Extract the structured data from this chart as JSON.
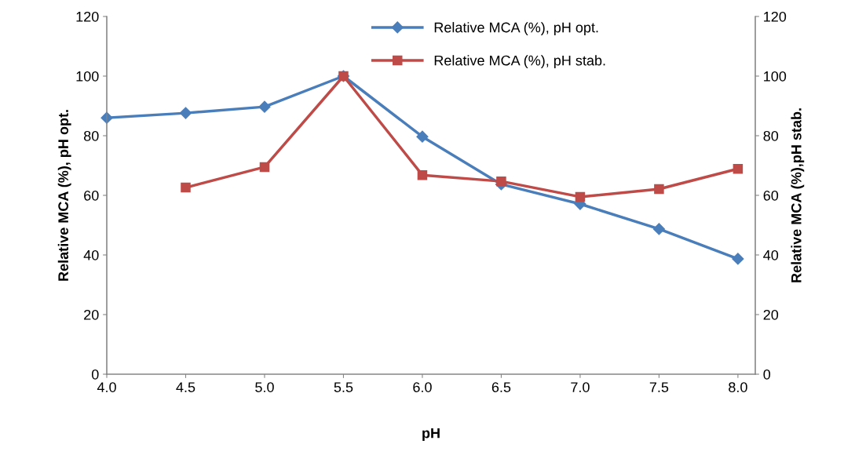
{
  "chart_data": {
    "type": "line",
    "xlabel": "pH",
    "ylabel": "Relative MCA (%), pH opt.",
    "y2label": "Relative MCA (%),pH stab.",
    "x": [
      4.0,
      4.5,
      5.0,
      5.5,
      6.0,
      6.5,
      7.0,
      7.5,
      8.0
    ],
    "series": [
      {
        "name": "Relative MCA (%), pH opt.",
        "color": "#4a7ebb",
        "marker": "diamond",
        "values": [
          86,
          87.6,
          89.7,
          100,
          79.7,
          63.7,
          57.1,
          48.7,
          38.7
        ]
      },
      {
        "name": "Relative MCA (%), pH stab.",
        "color": "#be4b48",
        "marker": "square",
        "axis": "y2",
        "values": [
          null,
          62.6,
          69.5,
          100,
          66.8,
          64.7,
          59.5,
          62.1,
          68.9
        ]
      }
    ],
    "xlim": [
      4.0,
      8.11
    ],
    "xticks": [
      {
        "value": 4.0,
        "label": "4.0"
      },
      {
        "value": 4.5,
        "label": "4.5"
      },
      {
        "value": 5.0,
        "label": "5.0"
      },
      {
        "value": 5.5,
        "label": "5.5"
      },
      {
        "value": 6.0,
        "label": "6.0"
      },
      {
        "value": 6.5,
        "label": "6.5"
      },
      {
        "value": 7.0,
        "label": "7.0"
      },
      {
        "value": 7.5,
        "label": "7.5"
      },
      {
        "value": 8.0,
        "label": "8.0"
      }
    ],
    "ylim": [
      0,
      120
    ],
    "yticks": [
      0,
      20,
      40,
      60,
      80,
      100,
      120
    ],
    "y2lim": [
      0,
      120
    ],
    "y2ticks": [
      0,
      20,
      40,
      60,
      80,
      100,
      120
    ],
    "grid": false,
    "legend": "top",
    "line_style": "solid"
  }
}
